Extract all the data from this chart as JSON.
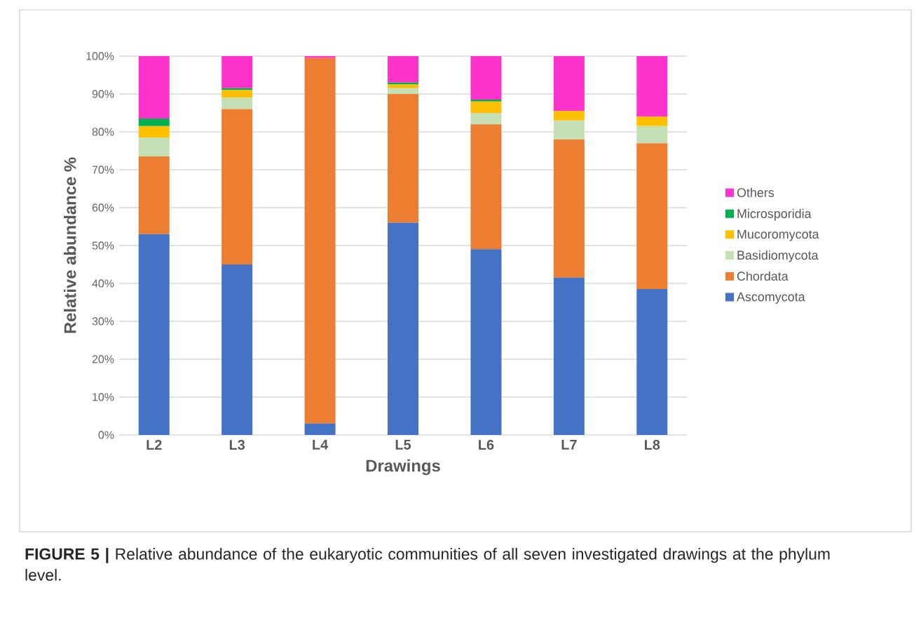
{
  "chart_data": {
    "type": "bar",
    "stacked": true,
    "xlabel": "Drawings",
    "ylabel": "Relative abundance %",
    "categories": [
      "L2",
      "L3",
      "L4",
      "L5",
      "L6",
      "L7",
      "L8"
    ],
    "series": [
      {
        "name": "Ascomycota",
        "color": "#4472c4",
        "values": [
          53,
          45,
          3,
          56,
          49,
          41.5,
          38.5
        ]
      },
      {
        "name": "Chordata",
        "color": "#ed7d31",
        "values": [
          20.5,
          41,
          96.5,
          34,
          33,
          36.5,
          38.5
        ]
      },
      {
        "name": "Basidiomycota",
        "color": "#c5e0b4",
        "values": [
          5,
          3,
          0,
          1.5,
          3,
          5,
          4.5
        ]
      },
      {
        "name": "Mucoromycota",
        "color": "#ffc000",
        "values": [
          3,
          2,
          0,
          1,
          3,
          2.5,
          2.5
        ]
      },
      {
        "name": "Microsporidia",
        "color": "#00b050",
        "values": [
          2,
          0.5,
          0,
          0.5,
          0.5,
          0,
          0
        ]
      },
      {
        "name": "Others",
        "color": "#ff33cc",
        "values": [
          16.5,
          8.5,
          0.5,
          7,
          11.5,
          14.5,
          16
        ]
      }
    ],
    "ylim": [
      0,
      100
    ],
    "yticks": [
      {
        "value": 0,
        "label": "0%"
      },
      {
        "value": 10,
        "label": "10%"
      },
      {
        "value": 20,
        "label": "20%"
      },
      {
        "value": 30,
        "label": "30%"
      },
      {
        "value": 40,
        "label": "40%"
      },
      {
        "value": 50,
        "label": "50%"
      },
      {
        "value": 60,
        "label": "60%"
      },
      {
        "value": 70,
        "label": "70%"
      },
      {
        "value": 80,
        "label": "80%"
      },
      {
        "value": 90,
        "label": "90%"
      },
      {
        "value": 100,
        "label": "100%"
      }
    ],
    "grid": "y",
    "legend": "right",
    "annotations": [
      "**FIGURE 5 |** Relative abundance of the eukaryotic communities of all seven investigated drawings at the phylum level."
    ]
  }
}
